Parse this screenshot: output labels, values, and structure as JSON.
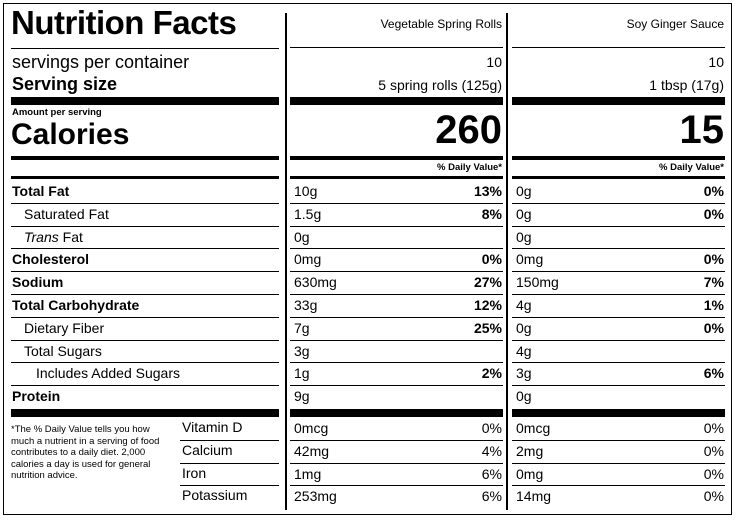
{
  "title": "Nutrition Facts",
  "products": [
    {
      "name": "Vegetable Spring Rolls",
      "servings": "10",
      "serving_size": "5 spring rolls (125g)",
      "calories": "260",
      "dv_header": "% Daily Value*",
      "nutrients": [
        {
          "amount": "10g",
          "dv": "13%"
        },
        {
          "amount": "1.5g",
          "dv": "8%"
        },
        {
          "amount": "0g",
          "dv": ""
        },
        {
          "amount": "0mg",
          "dv": "0%"
        },
        {
          "amount": "630mg",
          "dv": "27%"
        },
        {
          "amount": "33g",
          "dv": "12%"
        },
        {
          "amount": "7g",
          "dv": "25%"
        },
        {
          "amount": "3g",
          "dv": ""
        },
        {
          "amount": "1g",
          "dv": "2%"
        },
        {
          "amount": "9g",
          "dv": ""
        }
      ],
      "vitamins": [
        {
          "amount": "0mcg",
          "dv": "0%"
        },
        {
          "amount": "42mg",
          "dv": "4%"
        },
        {
          "amount": "1mg",
          "dv": "6%"
        },
        {
          "amount": "253mg",
          "dv": "6%"
        }
      ]
    },
    {
      "name": "Soy Ginger Sauce",
      "servings": "10",
      "serving_size": "1 tbsp (17g)",
      "calories": "15",
      "dv_header": "% Daily Value*",
      "nutrients": [
        {
          "amount": "0g",
          "dv": "0%"
        },
        {
          "amount": "0g",
          "dv": "0%"
        },
        {
          "amount": "0g",
          "dv": ""
        },
        {
          "amount": "0mg",
          "dv": "0%"
        },
        {
          "amount": "150mg",
          "dv": "7%"
        },
        {
          "amount": "4g",
          "dv": "1%"
        },
        {
          "amount": "0g",
          "dv": "0%"
        },
        {
          "amount": "4g",
          "dv": ""
        },
        {
          "amount": "3g",
          "dv": "6%"
        },
        {
          "amount": "0g",
          "dv": ""
        }
      ],
      "vitamins": [
        {
          "amount": "0mcg",
          "dv": "0%"
        },
        {
          "amount": "2mg",
          "dv": "0%"
        },
        {
          "amount": "0mg",
          "dv": "0%"
        },
        {
          "amount": "14mg",
          "dv": "0%"
        }
      ]
    }
  ],
  "labels": {
    "servings_per_container": "servings per container",
    "serving_size": "Serving size",
    "amount_per_serving": "Amount per serving",
    "calories": "Calories"
  },
  "nutrient_labels": [
    {
      "pre": "",
      "italic": "",
      "post": "Total Fat"
    },
    {
      "pre": "Saturated Fat",
      "italic": "",
      "post": ""
    },
    {
      "pre": "",
      "italic": "Trans",
      "post": " Fat"
    },
    {
      "pre": "",
      "italic": "",
      "post": "Cholesterol"
    },
    {
      "pre": "",
      "italic": "",
      "post": "Sodium"
    },
    {
      "pre": "",
      "italic": "",
      "post": "Total Carbohydrate"
    },
    {
      "pre": "Dietary Fiber",
      "italic": "",
      "post": ""
    },
    {
      "pre": "Total Sugars",
      "italic": "",
      "post": ""
    },
    {
      "pre": "Includes Added Sugars",
      "italic": "",
      "post": ""
    },
    {
      "pre": "",
      "italic": "",
      "post": "Protein"
    }
  ],
  "vitamin_labels": [
    "Vitamin D",
    "Calcium",
    "Iron",
    "Potassium"
  ],
  "footnote": "*The % Daily Value tells you how much a nutrient in a serving of food contributes to a daily diet. 2,000 calories a day is used for general nutrition advice."
}
